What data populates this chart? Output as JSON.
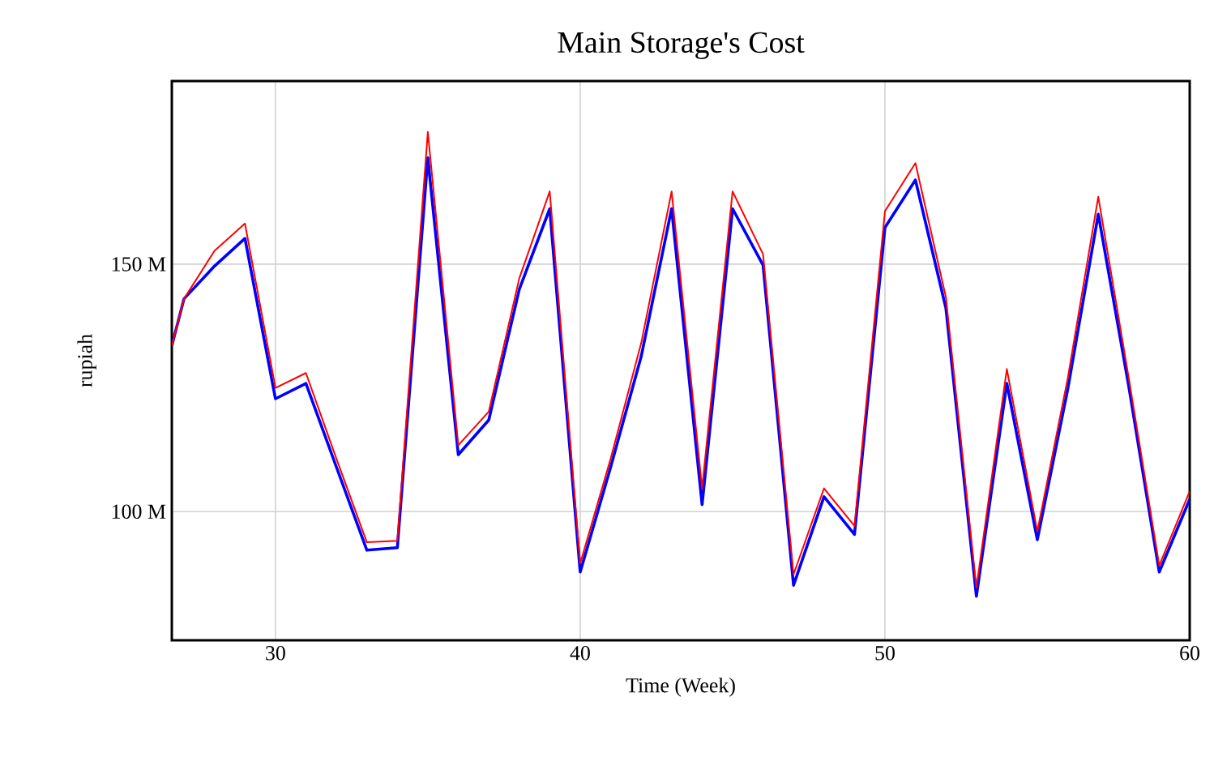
{
  "chart_data": {
    "type": "line",
    "title": "Main Storage's Cost",
    "xlabel": "Time (Week)",
    "ylabel": "rupiah",
    "x": [
      26.6,
      27,
      28,
      29,
      30,
      31,
      32,
      33,
      34,
      35,
      36,
      37,
      38,
      39,
      40,
      41,
      42,
      43,
      44,
      45,
      46,
      47,
      48,
      49,
      50,
      51,
      52,
      53,
      54,
      55,
      56,
      57,
      58,
      59,
      60
    ],
    "series": [
      {
        "color": "#0000ff",
        "values": [
          133.5,
          143.0,
          149.6,
          155.2,
          122.8,
          125.9,
          109.0,
          92.2,
          92.7,
          171.5,
          111.5,
          118.5,
          144.9,
          161.2,
          87.8,
          109.0,
          131.3,
          161.2,
          101.4,
          161.2,
          149.8,
          85.1,
          103.0,
          95.4,
          157.4,
          167.0,
          141.1,
          82.9,
          125.9,
          94.3,
          124.8,
          160.1,
          125.3,
          87.8,
          102.5
        ]
      },
      {
        "color": "#ff0000",
        "values": [
          133.5,
          143.0,
          152.7,
          158.2,
          125.0,
          128.0,
          110.7,
          93.8,
          94.1,
          176.7,
          113.4,
          120.2,
          147.1,
          164.7,
          89.5,
          110.7,
          134.0,
          164.7,
          104.7,
          164.7,
          152.0,
          87.3,
          104.7,
          97.1,
          160.7,
          170.4,
          143.3,
          84.6,
          128.8,
          96.0,
          127.0,
          163.6,
          127.0,
          89.1,
          104.1
        ]
      }
    ],
    "xlim": [
      26.6,
      60
    ],
    "ylim": [
      74,
      187
    ],
    "xticks": [
      30,
      40,
      50,
      60
    ],
    "yticks": [
      {
        "value": 100,
        "label": "100 M"
      },
      {
        "value": 150,
        "label": "150 M"
      }
    ],
    "grid": true,
    "marker": "none",
    "line_style": "solid"
  }
}
